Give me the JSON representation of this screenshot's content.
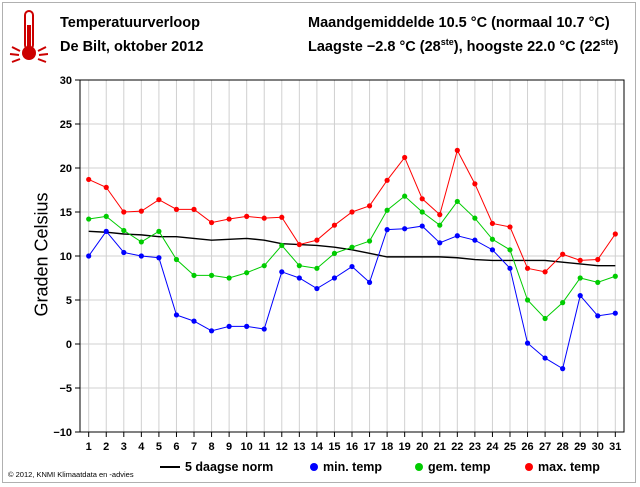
{
  "header": {
    "title_line1": "Temperatuurverloop",
    "title_line2": "De Bilt, oktober 2012",
    "stats_line1": "Maandgemiddelde 10.5 °C (normaal 10.7 °C)",
    "stats_line2_prefix": "Laagste −2.8 °C (28",
    "stats_line2_sup1": "ste",
    "stats_line2_mid": "), hoogste 22.0 °C (22",
    "stats_line2_sup2": "ste",
    "stats_line2_suffix": ")"
  },
  "footer": {
    "copyright": "© 2012, KNMI Klimaatdata en -advies"
  },
  "chart_data": {
    "type": "line",
    "ylabel": "Graden Celsius",
    "ylim": [
      -10,
      30
    ],
    "yticks": [
      -10,
      -5,
      0,
      5,
      10,
      15,
      20,
      25,
      30
    ],
    "x": [
      1,
      2,
      3,
      4,
      5,
      6,
      7,
      8,
      9,
      10,
      11,
      12,
      13,
      14,
      15,
      16,
      17,
      18,
      19,
      20,
      21,
      22,
      23,
      24,
      25,
      26,
      27,
      28,
      29,
      30,
      31
    ],
    "grid": true,
    "legend_position": "bottom",
    "series": [
      {
        "name": "5 daagse norm",
        "color": "#000000",
        "markers": false,
        "values": [
          12.8,
          12.7,
          12.5,
          12.4,
          12.2,
          12.2,
          12.0,
          11.8,
          11.9,
          12.0,
          11.8,
          11.4,
          11.3,
          11.2,
          11.0,
          10.7,
          10.3,
          9.9,
          9.9,
          9.9,
          9.9,
          9.8,
          9.6,
          9.5,
          9.5,
          9.5,
          9.5,
          9.3,
          9.1,
          8.9,
          8.9
        ]
      },
      {
        "name": "min. temp",
        "color": "#0000ff",
        "markers": true,
        "values": [
          10.0,
          12.8,
          10.4,
          10.0,
          9.8,
          3.3,
          2.6,
          1.5,
          2.0,
          2.0,
          1.7,
          8.2,
          7.5,
          6.3,
          7.5,
          8.8,
          7.0,
          13.0,
          13.1,
          13.4,
          11.5,
          12.3,
          11.8,
          10.7,
          8.6,
          0.1,
          -1.6,
          -2.8,
          5.5,
          3.2,
          3.5
        ]
      },
      {
        "name": "gem. temp",
        "color": "#00cc00",
        "markers": true,
        "values": [
          14.2,
          14.5,
          12.9,
          11.6,
          12.8,
          9.6,
          7.8,
          7.8,
          7.5,
          8.1,
          8.9,
          11.2,
          8.9,
          8.6,
          10.3,
          11.0,
          11.7,
          15.2,
          16.8,
          15.0,
          13.5,
          16.2,
          14.3,
          11.9,
          10.7,
          5.0,
          2.9,
          4.7,
          7.5,
          7.0,
          7.7
        ]
      },
      {
        "name": "max. temp",
        "color": "#ff0000",
        "markers": true,
        "values": [
          18.7,
          17.8,
          15.0,
          15.1,
          16.4,
          15.3,
          15.3,
          13.8,
          14.2,
          14.5,
          14.3,
          14.4,
          11.3,
          11.8,
          13.5,
          15.0,
          15.7,
          18.6,
          21.2,
          16.5,
          14.7,
          22.0,
          18.2,
          13.7,
          13.3,
          8.6,
          8.2,
          10.2,
          9.5,
          9.6,
          12.5
        ]
      }
    ]
  }
}
